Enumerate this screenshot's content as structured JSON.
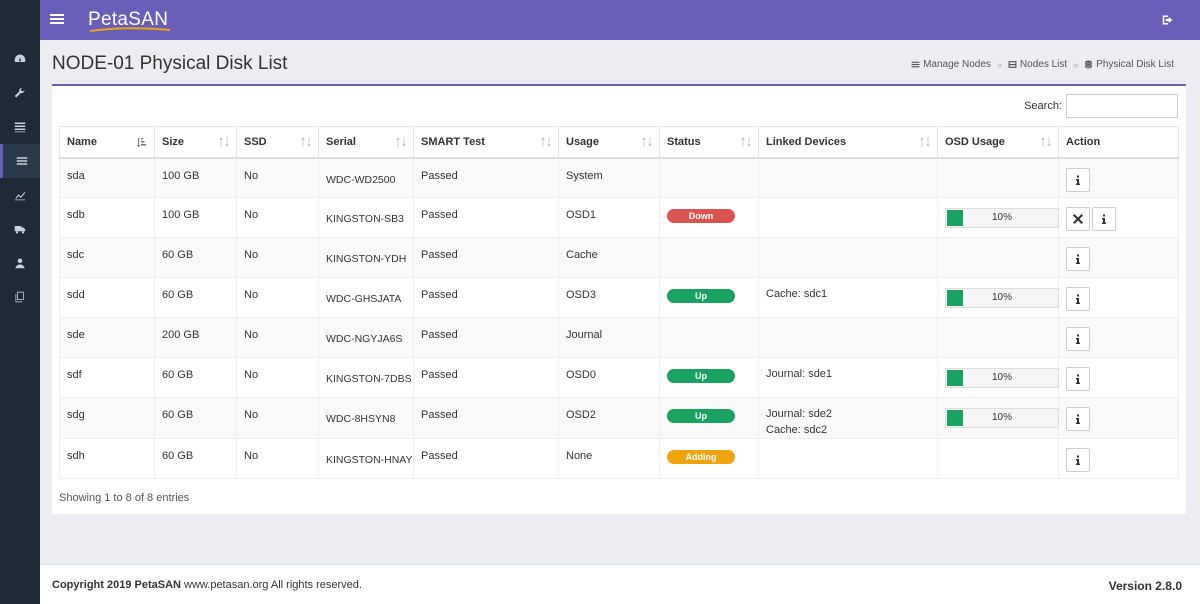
{
  "app": {
    "logo": "PetaSAN",
    "colors": {
      "primary": "#6a5fb8",
      "sidebar": "#1e2a35",
      "up": "#1aa260",
      "down": "#d9534f",
      "adding": "#f0a30a"
    }
  },
  "sidebar": {
    "items": [
      {
        "icon": "dashboard-icon"
      },
      {
        "icon": "wrench-icon"
      },
      {
        "icon": "list-icon"
      },
      {
        "icon": "menu-icon",
        "active": true
      },
      {
        "icon": "chart-icon"
      },
      {
        "icon": "truck-icon"
      },
      {
        "icon": "user-icon"
      },
      {
        "icon": "copy-icon"
      }
    ]
  },
  "header": {
    "title": "NODE-01 Physical Disk List",
    "breadcrumb": [
      "Manage Nodes",
      "Nodes List",
      "Physical Disk List"
    ]
  },
  "search": {
    "label": "Search:",
    "value": ""
  },
  "table": {
    "columns": [
      "Name",
      "Size",
      "SSD",
      "Serial",
      "SMART Test",
      "Usage",
      "Status",
      "Linked Devices",
      "OSD Usage",
      "Action"
    ],
    "rows": [
      {
        "name": "sda",
        "size": "100 GB",
        "ssd": "No",
        "serial": "WDC-WD2500",
        "smart": "Passed",
        "usage": "System",
        "status": "",
        "linked": [
          "",
          ""
        ],
        "osd": "",
        "osd_frac": 0,
        "actions": [
          "info"
        ]
      },
      {
        "name": "sdb",
        "size": "100 GB",
        "ssd": "No",
        "serial": "KINGSTON-SB3",
        "smart": "Passed",
        "usage": "OSD1",
        "status": "Down",
        "linked": [
          "",
          ""
        ],
        "osd": "10%",
        "osd_frac": 0.1,
        "actions": [
          "remove",
          "info"
        ]
      },
      {
        "name": "sdc",
        "size": "60 GB",
        "ssd": "No",
        "serial": "KINGSTON-YDH",
        "smart": "Passed",
        "usage": "Cache",
        "status": "",
        "linked": [
          "",
          ""
        ],
        "osd": "",
        "osd_frac": 0,
        "actions": [
          "info"
        ]
      },
      {
        "name": "sdd",
        "size": "60 GB",
        "ssd": "No",
        "serial": "WDC-GHSJATA",
        "smart": "Passed",
        "usage": "OSD3",
        "status": "Up",
        "linked": [
          "Cache: sdc1",
          ""
        ],
        "osd": "10%",
        "osd_frac": 0.1,
        "actions": [
          "info"
        ]
      },
      {
        "name": "sde",
        "size": "200 GB",
        "ssd": "No",
        "serial": "WDC-NGYJA6S",
        "smart": "Passed",
        "usage": "Journal",
        "status": "",
        "linked": [
          "",
          ""
        ],
        "osd": "",
        "osd_frac": 0,
        "actions": [
          "info"
        ]
      },
      {
        "name": "sdf",
        "size": "60 GB",
        "ssd": "No",
        "serial": "KINGSTON-7DBS",
        "smart": "Passed",
        "usage": "OSD0",
        "status": "Up",
        "linked": [
          "Journal: sde1",
          ""
        ],
        "osd": "10%",
        "osd_frac": 0.1,
        "actions": [
          "info"
        ]
      },
      {
        "name": "sdg",
        "size": "60 GB",
        "ssd": "No",
        "serial": "WDC-8HSYN8",
        "smart": "Passed",
        "usage": "OSD2",
        "status": "Up",
        "linked": [
          "Journal: sde2",
          "Cache: sdc2"
        ],
        "osd": "10%",
        "osd_frac": 0.1,
        "actions": [
          "info"
        ]
      },
      {
        "name": "sdh",
        "size": "60 GB",
        "ssd": "No",
        "serial": "KINGSTON-HNAY",
        "smart": "Passed",
        "usage": "None",
        "status": "Adding",
        "linked": [
          "",
          ""
        ],
        "osd": "",
        "osd_frac": 0,
        "actions": [
          "info"
        ]
      }
    ]
  },
  "entries_info": "Showing 1 to 8 of 8 entries",
  "footer": {
    "copyright_bold": "Copyright 2019 PetaSAN",
    "copyright_rest": " www.petasan.org All rights reserved.",
    "version": "Version 2.8.0"
  }
}
